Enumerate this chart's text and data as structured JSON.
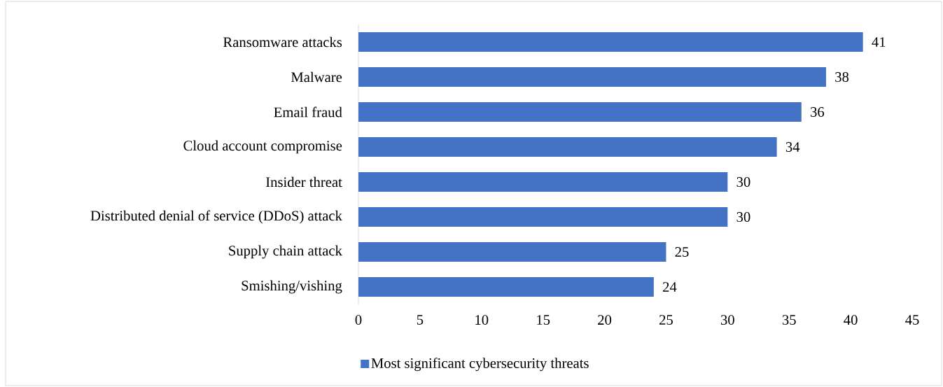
{
  "chart_data": {
    "type": "bar",
    "orientation": "horizontal",
    "categories": [
      "Ransomware attacks",
      "Malware",
      "Email fraud",
      "Cloud account compromise",
      "Insider threat",
      "Distributed denial of service (DDoS) attack",
      "Supply chain attack",
      "Smishing/vishing"
    ],
    "series": [
      {
        "name": "Most significant cybersecurity threats",
        "color": "#4472c4",
        "values": [
          41,
          38,
          36,
          34,
          30,
          30,
          25,
          24
        ]
      }
    ],
    "xlim": [
      0,
      45
    ],
    "xticks": [
      0,
      5,
      10,
      15,
      20,
      25,
      30,
      35,
      40,
      45
    ],
    "data_labels": true,
    "legend": "bottom"
  }
}
